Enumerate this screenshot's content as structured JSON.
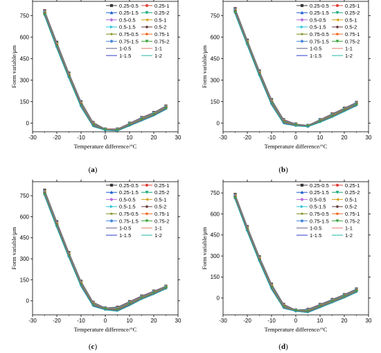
{
  "common": {
    "xlabel": "Temperature difference/°C",
    "ylabel": "Form variable/μm",
    "x_ticks": [
      "-30",
      "-20",
      "-10",
      "0",
      "10",
      "20",
      "30"
    ],
    "y_ticks": [
      "0",
      "150",
      "300",
      "450",
      "600",
      "750"
    ],
    "legend": [
      "0.25-0.5",
      "0.25-1",
      "0.25-1.5",
      "0.25-2",
      "0.5-0.5",
      "0.5-1",
      "0.5-1.5",
      "0.5-2",
      "0.75-0.5",
      "0.75-1",
      "0.75-1.5",
      "0.75-2",
      "1-0.5",
      "1-1",
      "1-1.5",
      "1-2"
    ],
    "colors": [
      "#3a3a3a",
      "#e0413a",
      "#1f5fd0",
      "#14a878",
      "#b26bd6",
      "#d2a11a",
      "#2ec4d8",
      "#6a3b3b",
      "#7a8a1a",
      "#ef6a1c",
      "#4a8ad8",
      "#3fa33f",
      "#5a5a8a",
      "#e07a6a",
      "#2a3ac8",
      "#1fb8a0"
    ],
    "markers": [
      "square",
      "circle",
      "triangle",
      "tri-down",
      "diamond",
      "tri-left",
      "tri-right",
      "hexagon",
      "star",
      "pentagon",
      "circle",
      "tri-down",
      "none",
      "none",
      "none",
      "none"
    ]
  },
  "panels": [
    {
      "id": "a",
      "label": "(a)"
    },
    {
      "id": "b",
      "label": "(b)"
    },
    {
      "id": "c",
      "label": "(c)"
    },
    {
      "id": "d",
      "label": "(d)"
    }
  ],
  "chart_data": [
    {
      "type": "line",
      "panel": "(a)",
      "xlabel": "Temperature difference/°C",
      "ylabel": "Form variable/μm",
      "xlim": [
        -30,
        30
      ],
      "ylim": [
        -60,
        850
      ],
      "x": [
        -25,
        -20,
        -15,
        -10,
        -5,
        0,
        5,
        10,
        15,
        20,
        25
      ],
      "series_upper": [
        785,
        565,
        350,
        150,
        5,
        -40,
        -40,
        0,
        40,
        75,
        120
      ],
      "series_lower": [
        745,
        520,
        310,
        110,
        -25,
        -50,
        -55,
        -20,
        15,
        50,
        95
      ],
      "legend": [
        "0.25-0.5",
        "0.25-1",
        "0.25-1.5",
        "0.25-2",
        "0.5-0.5",
        "0.5-1",
        "0.5-1.5",
        "0.5-2",
        "0.75-0.5",
        "0.75-1",
        "0.75-1.5",
        "0.75-2",
        "1-0.5",
        "1-1",
        "1-1.5",
        "1-2"
      ]
    },
    {
      "type": "line",
      "panel": "(b)",
      "xlabel": "Temperature difference/°C",
      "ylabel": "Form variable/μm",
      "xlim": [
        -30,
        30
      ],
      "ylim": [
        -60,
        850
      ],
      "x": [
        -25,
        -20,
        -15,
        -10,
        -5,
        0,
        5,
        10,
        15,
        20,
        25
      ],
      "series_upper": [
        800,
        580,
        365,
        165,
        25,
        -5,
        -15,
        25,
        65,
        105,
        145
      ],
      "series_lower": [
        760,
        540,
        325,
        125,
        -5,
        -20,
        -25,
        5,
        40,
        80,
        120
      ],
      "legend": [
        "0.25-0.5",
        "0.25-1",
        "0.25-1.5",
        "0.25-2",
        "0.5-0.5",
        "0.5-1",
        "0.5-1.5",
        "0.5-2",
        "0.75-0.5",
        "0.75-1",
        "0.75-1.5",
        "0.75-2",
        "1-0.5",
        "1-1",
        "1-1.5",
        "1-2"
      ]
    },
    {
      "type": "line",
      "panel": "(c)",
      "xlabel": "Temperature difference/°C",
      "ylabel": "Form variable/μm",
      "xlim": [
        -30,
        30
      ],
      "ylim": [
        -100,
        850
      ],
      "x": [
        -25,
        -20,
        -15,
        -10,
        -5,
        0,
        5,
        10,
        15,
        20,
        25
      ],
      "series_upper": [
        790,
        565,
        345,
        140,
        -10,
        -50,
        -45,
        -5,
        35,
        70,
        105
      ],
      "series_lower": [
        745,
        520,
        305,
        100,
        -40,
        -65,
        -75,
        -35,
        10,
        45,
        85
      ],
      "legend": [
        "0.25-0.5",
        "0.25-1",
        "0.25-1.5",
        "0.25-2",
        "0.5-0.5",
        "0.5-1",
        "0.5-1.5",
        "0.5-2",
        "0.75-0.5",
        "0.75-1",
        "0.75-1.5",
        "0.75-2",
        "1-0.5",
        "1-1",
        "1-1.5",
        "1-2"
      ]
    },
    {
      "type": "line",
      "panel": "(d)",
      "xlabel": "Temperature difference/°C",
      "ylabel": "Form variable/μm",
      "xlim": [
        -30,
        30
      ],
      "ylim": [
        -120,
        830
      ],
      "x": [
        -25,
        -20,
        -15,
        -10,
        -5,
        0,
        5,
        10,
        15,
        20,
        25
      ],
      "series_upper": [
        740,
        510,
        295,
        100,
        -45,
        -85,
        -80,
        -45,
        -10,
        25,
        65
      ],
      "series_lower": [
        700,
        470,
        255,
        60,
        -75,
        -95,
        -105,
        -70,
        -35,
        0,
        40
      ],
      "legend": [
        "0.25-0.5",
        "0.25-1",
        "0.25-1.5",
        "0.25-2",
        "0.5-0.5",
        "0.5-1",
        "0.5-1.5",
        "0.5-2",
        "0.75-0.5",
        "0.75-1",
        "0.75-1.5",
        "0.75-2",
        "1-0.5",
        "1-1",
        "1-1.5",
        "1-2"
      ]
    }
  ]
}
